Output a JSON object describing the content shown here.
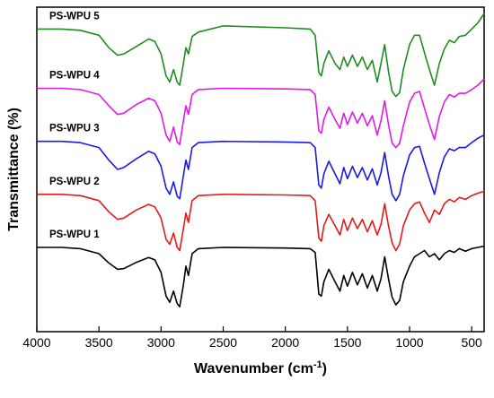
{
  "chart_data": {
    "type": "line",
    "xlabel": "Wavenumber (cm",
    "xlabel_sup": "-1",
    "xlabel_close": ")",
    "ylabel": "Transmittance (%)",
    "xlim": [
      4000,
      400
    ],
    "x_reversed": true,
    "ylim": [
      0,
      5.2
    ],
    "y_ticks_shown": false,
    "x_ticks": [
      4000,
      3500,
      3000,
      2500,
      2000,
      1500,
      1000,
      500
    ],
    "x_tick_labels": [
      "4000",
      "3500",
      "3000",
      "2500",
      "2000",
      "1500",
      "1000",
      "500"
    ],
    "grid": false,
    "series": [
      {
        "name": "PS-WPU 1",
        "color": "#000000",
        "offset": 0.35,
        "x": [
          4000,
          3800,
          3650,
          3500,
          3420,
          3350,
          3300,
          3200,
          3100,
          3050,
          3000,
          2960,
          2930,
          2900,
          2870,
          2850,
          2820,
          2800,
          2780,
          2750,
          2700,
          2500,
          2000,
          1800,
          1760,
          1730,
          1710,
          1690,
          1650,
          1600,
          1560,
          1530,
          1500,
          1460,
          1420,
          1380,
          1340,
          1300,
          1260,
          1230,
          1200,
          1170,
          1140,
          1110,
          1080,
          1050,
          1000,
          960,
          920,
          880,
          840,
          800,
          760,
          720,
          680,
          640,
          600,
          550,
          500,
          450,
          400
        ],
        "y": [
          1.0,
          1.0,
          0.98,
          0.9,
          0.75,
          0.65,
          0.66,
          0.76,
          0.84,
          0.8,
          0.6,
          0.22,
          0.12,
          0.3,
          0.1,
          0.05,
          0.4,
          0.7,
          0.55,
          0.9,
          0.98,
          1.0,
          0.99,
          0.98,
          0.92,
          0.25,
          0.22,
          0.45,
          0.65,
          0.45,
          0.3,
          0.55,
          0.38,
          0.6,
          0.4,
          0.58,
          0.35,
          0.55,
          0.3,
          0.5,
          0.85,
          0.5,
          0.2,
          0.08,
          0.15,
          0.45,
          0.7,
          0.85,
          0.9,
          0.95,
          0.85,
          0.9,
          0.8,
          0.9,
          0.95,
          0.92,
          0.98,
          0.94,
          0.98,
          1.0,
          1.02
        ]
      },
      {
        "name": "PS-WPU 2",
        "color": "#e41a1a",
        "offset": 1.2,
        "x": [
          4000,
          3800,
          3650,
          3500,
          3420,
          3350,
          3300,
          3200,
          3100,
          3050,
          3000,
          2960,
          2930,
          2900,
          2870,
          2850,
          2820,
          2800,
          2780,
          2750,
          2700,
          2500,
          2000,
          1800,
          1760,
          1730,
          1710,
          1690,
          1650,
          1600,
          1560,
          1530,
          1500,
          1460,
          1420,
          1380,
          1340,
          1300,
          1260,
          1230,
          1200,
          1170,
          1140,
          1110,
          1080,
          1050,
          1000,
          960,
          920,
          880,
          840,
          800,
          760,
          720,
          680,
          640,
          600,
          550,
          500,
          450,
          400
        ],
        "y": [
          1.0,
          1.0,
          0.98,
          0.9,
          0.72,
          0.6,
          0.62,
          0.75,
          0.84,
          0.8,
          0.62,
          0.28,
          0.2,
          0.38,
          0.15,
          0.1,
          0.45,
          0.7,
          0.55,
          0.9,
          0.98,
          1.0,
          0.99,
          0.98,
          0.9,
          0.3,
          0.25,
          0.5,
          0.68,
          0.5,
          0.35,
          0.6,
          0.42,
          0.62,
          0.45,
          0.6,
          0.4,
          0.58,
          0.35,
          0.52,
          0.85,
          0.5,
          0.22,
          0.1,
          0.2,
          0.5,
          0.75,
          0.85,
          0.88,
          0.7,
          0.55,
          0.75,
          0.68,
          0.85,
          0.92,
          0.88,
          0.95,
          0.92,
          0.98,
          1.02,
          1.05
        ]
      },
      {
        "name": "PS-WPU 3",
        "color": "#1a1ae4",
        "offset": 2.05,
        "x": [
          4000,
          3800,
          3650,
          3500,
          3420,
          3350,
          3300,
          3200,
          3100,
          3050,
          3000,
          2960,
          2930,
          2900,
          2870,
          2850,
          2820,
          2800,
          2780,
          2750,
          2700,
          2500,
          2000,
          1800,
          1760,
          1730,
          1710,
          1690,
          1650,
          1600,
          1560,
          1530,
          1500,
          1460,
          1420,
          1380,
          1340,
          1300,
          1260,
          1230,
          1200,
          1170,
          1140,
          1110,
          1080,
          1050,
          1000,
          960,
          920,
          880,
          840,
          800,
          760,
          720,
          680,
          640,
          600,
          550,
          500,
          450,
          400
        ],
        "y": [
          1.0,
          1.0,
          0.98,
          0.9,
          0.7,
          0.55,
          0.58,
          0.72,
          0.84,
          0.8,
          0.6,
          0.25,
          0.15,
          0.35,
          0.12,
          0.08,
          0.45,
          0.7,
          0.55,
          0.9,
          0.98,
          1.0,
          0.99,
          0.98,
          0.9,
          0.3,
          0.25,
          0.48,
          0.68,
          0.48,
          0.32,
          0.58,
          0.4,
          0.6,
          0.42,
          0.58,
          0.38,
          0.56,
          0.3,
          0.5,
          0.82,
          0.45,
          0.15,
          0.05,
          0.15,
          0.45,
          0.78,
          0.9,
          0.92,
          0.65,
          0.4,
          0.15,
          0.5,
          0.75,
          0.88,
          0.85,
          0.9,
          0.9,
          0.98,
          1.05,
          1.1
        ]
      },
      {
        "name": "PS-WPU 4",
        "color": "#e11ae8",
        "offset": 2.9,
        "x": [
          4000,
          3800,
          3650,
          3500,
          3420,
          3350,
          3300,
          3200,
          3100,
          3050,
          3000,
          2960,
          2930,
          2900,
          2870,
          2850,
          2820,
          2800,
          2780,
          2750,
          2700,
          2500,
          2000,
          1800,
          1760,
          1730,
          1710,
          1690,
          1650,
          1600,
          1560,
          1530,
          1500,
          1460,
          1420,
          1380,
          1340,
          1300,
          1260,
          1230,
          1200,
          1170,
          1140,
          1110,
          1080,
          1050,
          1000,
          960,
          920,
          880,
          840,
          800,
          760,
          720,
          680,
          640,
          600,
          550,
          500,
          450,
          400
        ],
        "y": [
          1.0,
          1.0,
          0.98,
          0.9,
          0.72,
          0.58,
          0.6,
          0.74,
          0.84,
          0.8,
          0.6,
          0.25,
          0.15,
          0.38,
          0.14,
          0.1,
          0.48,
          0.72,
          0.58,
          0.9,
          0.98,
          1.0,
          0.99,
          0.98,
          0.9,
          0.32,
          0.28,
          0.5,
          0.7,
          0.5,
          0.36,
          0.6,
          0.42,
          0.62,
          0.44,
          0.6,
          0.4,
          0.56,
          0.25,
          0.48,
          0.8,
          0.42,
          0.12,
          0.05,
          0.12,
          0.4,
          0.78,
          0.92,
          0.95,
          0.68,
          0.42,
          0.18,
          0.55,
          0.78,
          0.9,
          0.86,
          0.92,
          0.92,
          0.98,
          1.05,
          1.15
        ]
      },
      {
        "name": "PS-WPU 5",
        "color": "#1e8c1e",
        "offset": 3.75,
        "x": [
          4000,
          3800,
          3650,
          3500,
          3420,
          3350,
          3300,
          3200,
          3100,
          3050,
          3000,
          2960,
          2930,
          2900,
          2870,
          2850,
          2820,
          2800,
          2780,
          2750,
          2700,
          2500,
          2000,
          1800,
          1760,
          1730,
          1710,
          1690,
          1650,
          1600,
          1560,
          1530,
          1500,
          1460,
          1420,
          1380,
          1340,
          1300,
          1260,
          1230,
          1200,
          1170,
          1140,
          1110,
          1080,
          1050,
          1000,
          960,
          920,
          880,
          840,
          800,
          760,
          720,
          680,
          640,
          600,
          550,
          500,
          450,
          400
        ],
        "y": [
          1.1,
          1.1,
          1.08,
          1.0,
          0.8,
          0.68,
          0.7,
          0.82,
          0.94,
          0.9,
          0.7,
          0.35,
          0.25,
          0.45,
          0.25,
          0.2,
          0.55,
          0.8,
          0.7,
          0.98,
          1.05,
          1.15,
          1.12,
          1.1,
          1.0,
          0.4,
          0.35,
          0.55,
          0.75,
          0.55,
          0.45,
          0.65,
          0.5,
          0.68,
          0.5,
          0.65,
          0.45,
          0.6,
          0.25,
          0.55,
          0.85,
          0.42,
          0.1,
          0.02,
          0.08,
          0.45,
          0.85,
          1.0,
          1.0,
          0.72,
          0.45,
          0.2,
          0.55,
          0.78,
          0.92,
          0.88,
          0.98,
          1.0,
          1.1,
          1.2,
          1.35
        ]
      }
    ]
  }
}
